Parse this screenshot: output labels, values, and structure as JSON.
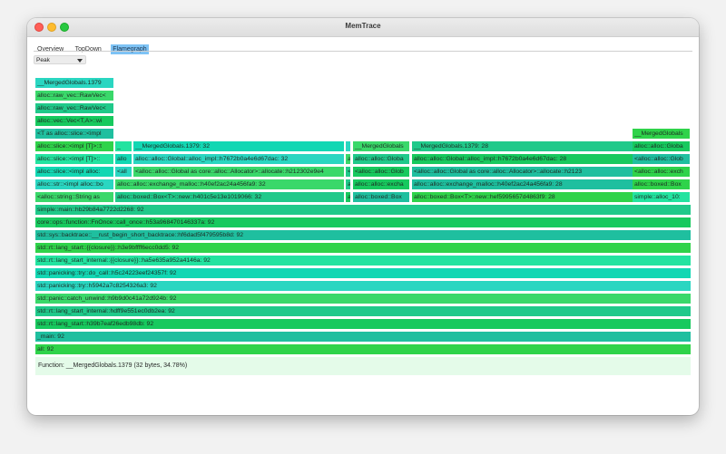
{
  "window": {
    "title": "MemTrace"
  },
  "tabs": [
    {
      "label": "Overview",
      "active": false
    },
    {
      "label": "TopDown",
      "active": false
    },
    {
      "label": "Flamegraph",
      "active": true
    }
  ],
  "mode_select": {
    "value": "Peak"
  },
  "flamegraph": {
    "colors": [
      "#2fd34a",
      "#20c98a",
      "#12d7b3",
      "#1fbf9f",
      "#3ad86a",
      "#23e3a0",
      "#17c95e",
      "#2ad6c1"
    ],
    "rows": [
      [
        "all: 92"
      ],
      [
        "_main: 92"
      ],
      [
        "std::rt::lang_start::h39b7eaf26edb98db: 92"
      ],
      [
        "std::rt::lang_start_internal::hdff9e551ec0db2ea: 92"
      ],
      [
        "std::panic::catch_unwind::h9b9d0c41a72d924b: 92"
      ],
      [
        "std::panicking::try::h5942a7c8254326a3: 92"
      ],
      [
        "std::panicking::try::do_call::h5c24223eef24357f: 92"
      ],
      [
        "std::rt::lang_start_internal::{{closure}}::ha5e635a952a4146a: 92"
      ],
      [
        "std::rt::lang_start::{{closure}}::h3e9bffff6ecc0dd5: 92"
      ],
      [
        "std::sys::backtrace::__rust_begin_short_backtrace::hf6dad5f479595b8d: 92"
      ],
      [
        "core::ops::function::FnOnce::call_once::h53a968470146337a: 92"
      ],
      [
        "simple::main::hb29b84a7722d2268: 92"
      ],
      [
        "<alloc::string::String as",
        "alloc::boxed::Box<T>::new::h401c5e13e1019066: 32",
        "a",
        "alloc::boxed::Box",
        "alloc::boxed::Box<T>::new::hef5995657d4863f9: 28",
        "simple::alloc_10:"
      ],
      [
        "alloc::str::<impl alloc::bo",
        "alloc::alloc::exchange_malloc::h40ef2ac24a456fa9: 32",
        "a",
        "alloc::alloc::excha",
        "alloc::alloc::exchange_malloc::h40ef2ac24a456fa9: 28",
        "alloc::boxed::Box"
      ],
      [
        "alloc::slice::<impl alloc:",
        "<all",
        "<alloc::alloc::Global as core::alloc::Allocator>::allocate::h212302e9e4",
        "<",
        "<alloc::alloc::Glob",
        "<alloc::alloc::Global as core::alloc::Allocator>::allocate::h2123",
        "<alloc::alloc::exch"
      ],
      [
        "alloc::slice::<impl [T]>::",
        "allo",
        "alloc::alloc::Global::alloc_impl::h7672b0a4e6d67dac: 32",
        "a",
        "alloc::alloc::Globa",
        "alloc::alloc::Global::alloc_impl::h7672b0a4e6d67dac: 28",
        "<alloc::alloc::Glob"
      ],
      [
        "alloc::slice::<impl [T]>::t",
        "_",
        "__MergedGlobals.1379: 32",
        "",
        "__MergedGlobals",
        "__MergedGlobals.1379: 28",
        "alloc::alloc::Globa"
      ],
      [
        "<T as alloc::slice::<impl",
        "__MergedGlobals"
      ],
      [
        "alloc::vec::Vec<T,A>::wi"
      ],
      [
        "alloc::raw_vec::RawVec<"
      ],
      [
        "alloc::raw_vec::RawVec<"
      ],
      [
        "__MergedGlobals.1379"
      ]
    ]
  },
  "status": {
    "text": "Function: __MergedGlobals.1379 (32 bytes, 34.78%)"
  }
}
